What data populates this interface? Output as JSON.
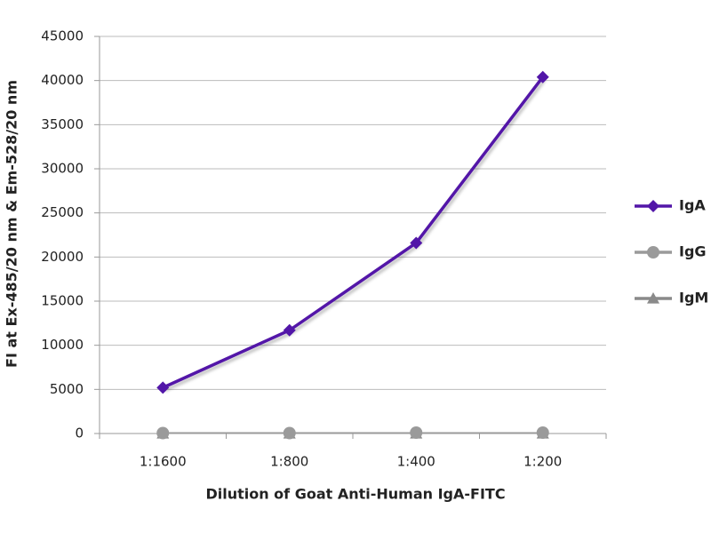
{
  "chart_data": {
    "type": "line",
    "categories": [
      "1:1600",
      "1:800",
      "1:400",
      "1:200"
    ],
    "series": [
      {
        "name": "IgA",
        "color": "#5216a8",
        "marker": "diamond",
        "values": [
          5200,
          11700,
          21600,
          40400
        ]
      },
      {
        "name": "IgG",
        "color": "#9a9a9a",
        "marker": "circle",
        "values": [
          50,
          50,
          100,
          100
        ]
      },
      {
        "name": "IgM",
        "color": "#8a8a8a",
        "marker": "triangle",
        "values": [
          0,
          0,
          0,
          0
        ]
      }
    ],
    "xlabel": "Dilution of Goat Anti-Human IgA-FITC",
    "ylabel": "FI at Ex-485/20 nm & Em-528/20 nm",
    "ylim": [
      0,
      45000
    ],
    "yticks": [
      0,
      5000,
      10000,
      15000,
      20000,
      25000,
      30000,
      35000,
      40000,
      45000
    ],
    "grid": true,
    "legend": "right"
  }
}
